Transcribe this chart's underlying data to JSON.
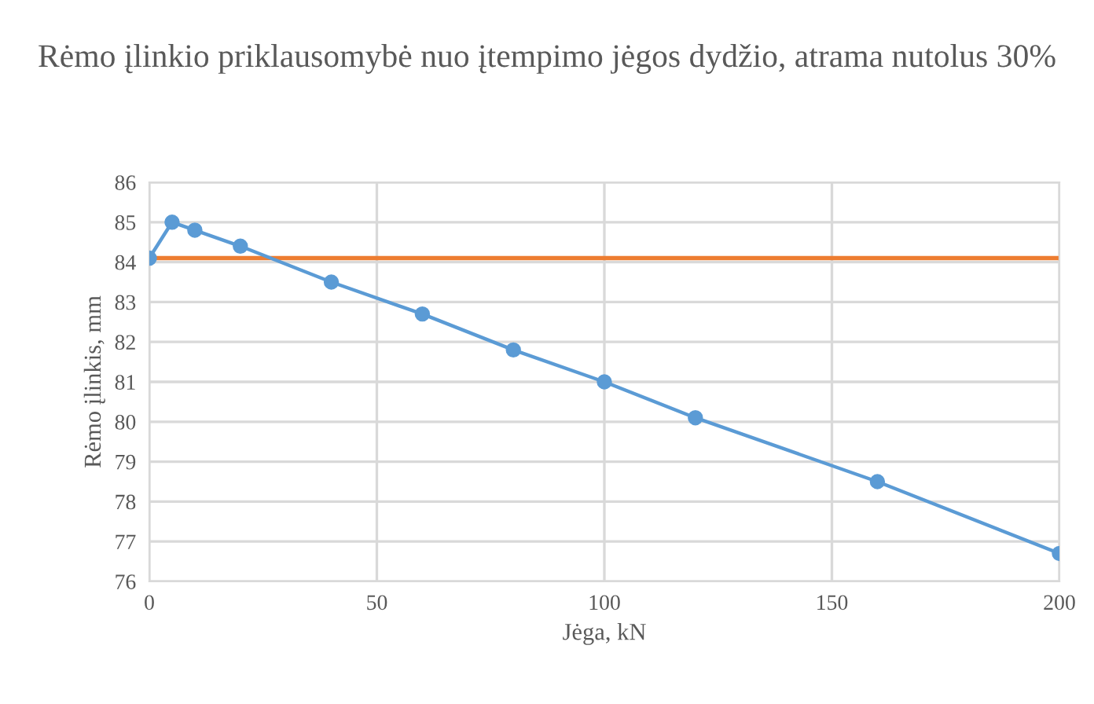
{
  "chart_data": {
    "type": "line",
    "title": "Rėmo įlinkio priklausomybė nuo įtempimo jėgos dydžio, atrama nutolus 30%",
    "xlabel": "Jėga, kN",
    "ylabel": "Rėmo įlinkis, mm",
    "series": [
      {
        "color": "#5b9bd5",
        "x": [
          0,
          5,
          10,
          20,
          40,
          60,
          80,
          100,
          120,
          160,
          200
        ],
        "values": [
          84.1,
          85.0,
          84.8,
          84.4,
          83.5,
          82.7,
          81.8,
          81.0,
          80.1,
          78.5,
          76.7
        ]
      }
    ],
    "ref_lines": [
      {
        "axis": "y",
        "value": 84.1,
        "color": "#ed7d31"
      }
    ],
    "xlim": [
      0,
      200
    ],
    "xticks": [
      0,
      50,
      100,
      150,
      200
    ],
    "ylim": [
      76,
      86
    ],
    "yticks": [
      76,
      77,
      78,
      79,
      80,
      81,
      82,
      83,
      84,
      85,
      86
    ],
    "grid": true,
    "marker": "circle",
    "line_style": "solid",
    "legend": false
  }
}
